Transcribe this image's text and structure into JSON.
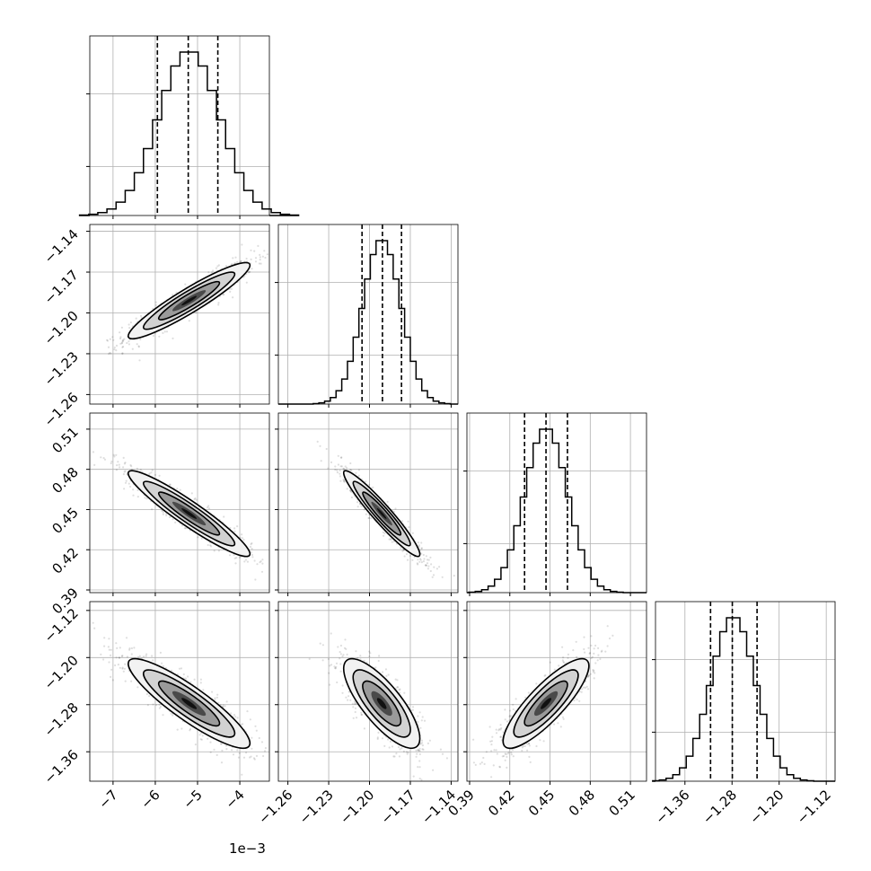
{
  "chart_data": {
    "type": "corner",
    "scale_label": "1e−3",
    "parameters": [
      {
        "range": [
          -7.55,
          -3.3
        ],
        "ticks": [
          "−7",
          "−6",
          "−5",
          "−4"
        ],
        "tick_values": [
          -7,
          -6,
          -5,
          -4
        ],
        "quantiles": [
          -5.95,
          -5.22,
          -4.52
        ],
        "mean": -5.2,
        "sd": 0.72
      },
      {
        "range": [
          -1.267,
          -1.135
        ],
        "ticks": [
          "−1.26",
          "−1.23",
          "−1.20",
          "−1.17",
          "−1.14"
        ],
        "tick_values": [
          -1.26,
          -1.23,
          -1.2,
          -1.17,
          -1.14
        ],
        "quantiles": [
          -1.2055,
          -1.1905,
          -1.1765
        ],
        "mean": -1.191,
        "sd": 0.014
      },
      {
        "range": [
          0.388,
          0.522
        ],
        "ticks": [
          "0.39",
          "0.42",
          "0.45",
          "0.48",
          "0.51"
        ],
        "tick_values": [
          0.39,
          0.42,
          0.45,
          0.48,
          0.51
        ],
        "quantiles": [
          0.431,
          0.447,
          0.463
        ],
        "mean": 0.447,
        "sd": 0.016
      },
      {
        "range": [
          -1.41,
          -1.105
        ],
        "ticks": [
          "−1.36",
          "−1.28",
          "−1.20",
          "−1.12"
        ],
        "tick_values": [
          -1.36,
          -1.28,
          -1.2,
          -1.12
        ],
        "quantiles": [
          -1.3165,
          -1.2795,
          -1.2375
        ],
        "mean": -1.278,
        "sd": 0.038
      }
    ],
    "correlations": [
      [
        1.0,
        0.93,
        -0.94,
        -0.89
      ],
      [
        0.93,
        1.0,
        -0.95,
        -0.78
      ],
      [
        -0.94,
        -0.95,
        1.0,
        0.84
      ],
      [
        -0.89,
        -0.78,
        0.84,
        1.0
      ]
    ]
  }
}
